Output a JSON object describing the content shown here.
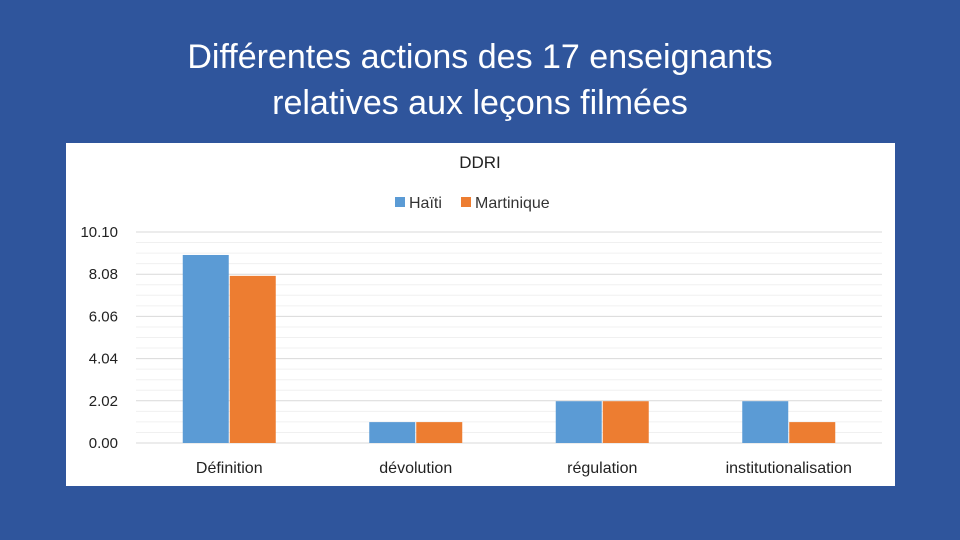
{
  "slide": {
    "title_line1": "Différentes actions des 17 enseignants",
    "title_line2": "relatives aux leçons filmées"
  },
  "chart_data": {
    "type": "bar",
    "title": "DDRI",
    "categories": [
      "Définition",
      "dévolution",
      "régulation",
      "institutionalisation"
    ],
    "series": [
      {
        "name": "Haïti",
        "values": [
          9,
          1,
          2,
          2
        ],
        "color": "#5b9bd5"
      },
      {
        "name": "Martinique",
        "values": [
          8,
          1,
          2,
          1
        ],
        "color": "#ed7d31"
      }
    ],
    "yticks": [
      "0.00",
      "2.02",
      "4.04",
      "6.06",
      "8.08",
      "10.10"
    ],
    "ylim": [
      0,
      10.1
    ],
    "grid": true,
    "legend": "top-center"
  }
}
